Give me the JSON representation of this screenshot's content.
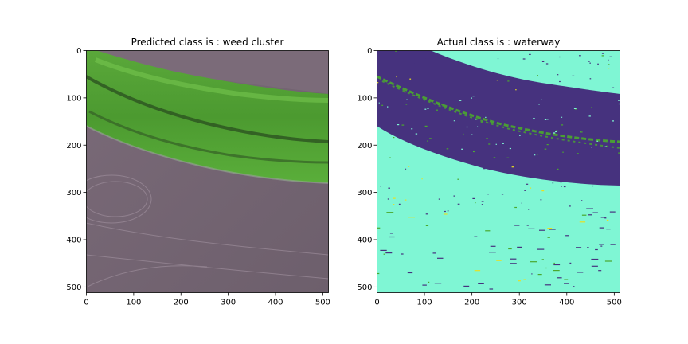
{
  "chart_data": [
    {
      "type": "heatmap",
      "title": "Predicted class is : weed cluster",
      "xlim": [
        0,
        512
      ],
      "ylim": [
        512,
        0
      ],
      "x_ticks": [
        0,
        100,
        200,
        300,
        400,
        500
      ],
      "y_ticks": [
        0,
        100,
        200,
        300,
        400,
        500
      ],
      "content": "RGB aerial image",
      "colors": {
        "field": "#7a6877",
        "field_light": "#8c7c8a",
        "vegetation": "#4a9a2c",
        "vegetation_dark": "#2f5f22",
        "vegetation_light": "#6fbf45"
      }
    },
    {
      "type": "heatmap",
      "title": "Actual class is : waterway",
      "xlim": [
        0,
        512
      ],
      "ylim": [
        512,
        0
      ],
      "x_ticks": [
        0,
        100,
        200,
        300,
        400,
        500
      ],
      "y_ticks": [
        0,
        100,
        200,
        300,
        400,
        500
      ],
      "content": "segmentation label map",
      "colors": {
        "background": "#7ff6d4",
        "waterway": "#46327e",
        "weed": "#4aa82e",
        "speckle": "#e8e020"
      }
    }
  ]
}
